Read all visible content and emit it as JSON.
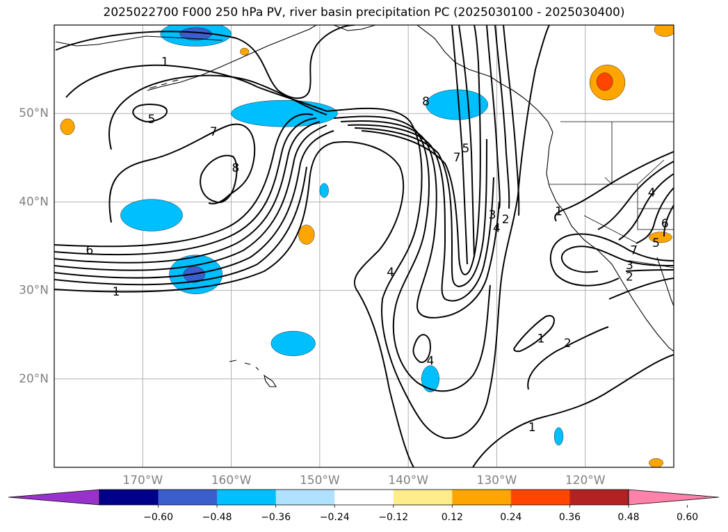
{
  "title": "2025022700 F000 250 hPa PV, river basin precipitation PC (2025030100 - 2025030400)",
  "map": {
    "lon_range": [
      -180,
      -110
    ],
    "lat_range": [
      10,
      60
    ],
    "lat_ticks": [
      {
        "value": 50,
        "label": "50°N"
      },
      {
        "value": 40,
        "label": "40°N"
      },
      {
        "value": 30,
        "label": "30°N"
      },
      {
        "value": 20,
        "label": "20°N"
      }
    ],
    "lon_ticks": [
      {
        "value": -170,
        "label": "170°W"
      },
      {
        "value": -160,
        "label": "160°W"
      },
      {
        "value": -150,
        "label": "150°W"
      },
      {
        "value": -140,
        "label": "140°W"
      },
      {
        "value": -130,
        "label": "130°W"
      },
      {
        "value": -120,
        "label": "120°W"
      }
    ],
    "grid": true,
    "contour_labels": [
      {
        "text": "1",
        "lon": -167.5,
        "lat": 55.8
      },
      {
        "text": "5",
        "lon": -169.0,
        "lat": 49.3
      },
      {
        "text": "7",
        "lon": -162.0,
        "lat": 47.9
      },
      {
        "text": "8",
        "lon": -159.5,
        "lat": 43.8
      },
      {
        "text": "8",
        "lon": -138.0,
        "lat": 51.3
      },
      {
        "text": "5",
        "lon": -133.5,
        "lat": 46.0
      },
      {
        "text": "7",
        "lon": -134.5,
        "lat": 45.0
      },
      {
        "text": "6",
        "lon": -176.0,
        "lat": 34.5
      },
      {
        "text": "1",
        "lon": -173.0,
        "lat": 29.8
      },
      {
        "text": "3",
        "lon": -130.5,
        "lat": 38.5
      },
      {
        "text": "2",
        "lon": -129.0,
        "lat": 38.0
      },
      {
        "text": "4",
        "lon": -130.0,
        "lat": 37.0
      },
      {
        "text": "1",
        "lon": -123.0,
        "lat": 38.9
      },
      {
        "text": "4",
        "lon": -142.0,
        "lat": 32.0
      },
      {
        "text": "4",
        "lon": -137.5,
        "lat": 22.0
      },
      {
        "text": "1",
        "lon": -125.0,
        "lat": 24.5
      },
      {
        "text": "2",
        "lon": -122.0,
        "lat": 24.0
      },
      {
        "text": "1",
        "lon": -126.0,
        "lat": 14.5
      },
      {
        "text": "4",
        "lon": -112.5,
        "lat": 41.0
      },
      {
        "text": "6",
        "lon": -111.0,
        "lat": 37.5
      },
      {
        "text": "5",
        "lon": -112.0,
        "lat": 35.3
      },
      {
        "text": "7",
        "lon": -114.5,
        "lat": 34.5
      },
      {
        "text": "3",
        "lon": -115.0,
        "lat": 32.8
      },
      {
        "text": "2",
        "lon": -115.0,
        "lat": 31.5
      }
    ],
    "precip_blobs": [
      {
        "lon": -164.0,
        "lat": 59.0,
        "rx": 4.0,
        "ry": 1.4,
        "color": "#00bfff"
      },
      {
        "lon": -164.0,
        "lat": 59.0,
        "rx": 1.8,
        "ry": 0.7,
        "color": "#3a5fcd"
      },
      {
        "lon": -154.0,
        "lat": 50.0,
        "rx": 6.0,
        "ry": 1.5,
        "color": "#00bfff"
      },
      {
        "lon": -134.5,
        "lat": 51.0,
        "rx": 3.5,
        "ry": 1.7,
        "color": "#00bfff"
      },
      {
        "lon": -169.0,
        "lat": 38.5,
        "rx": 3.5,
        "ry": 1.8,
        "color": "#00bfff"
      },
      {
        "lon": -164.0,
        "lat": 31.8,
        "rx": 3.0,
        "ry": 2.2,
        "color": "#00bfff"
      },
      {
        "lon": -164.2,
        "lat": 31.8,
        "rx": 1.2,
        "ry": 0.9,
        "color": "#3a5fcd"
      },
      {
        "lon": -153.0,
        "lat": 24.0,
        "rx": 2.5,
        "ry": 1.4,
        "color": "#00bfff"
      },
      {
        "lon": -137.5,
        "lat": 20.0,
        "rx": 1.0,
        "ry": 1.5,
        "color": "#00bfff"
      },
      {
        "lon": -149.5,
        "lat": 41.3,
        "rx": 0.5,
        "ry": 0.8,
        "color": "#00bfff"
      },
      {
        "lon": -123.0,
        "lat": 13.5,
        "rx": 0.5,
        "ry": 1.0,
        "color": "#00bfff"
      },
      {
        "lon": -151.5,
        "lat": 36.3,
        "rx": 0.9,
        "ry": 1.1,
        "color": "#ffa500"
      },
      {
        "lon": -178.5,
        "lat": 48.5,
        "rx": 0.8,
        "ry": 0.9,
        "color": "#ffa500"
      },
      {
        "lon": -117.5,
        "lat": 53.5,
        "rx": 2.0,
        "ry": 2.0,
        "color": "#ffa500"
      },
      {
        "lon": -117.8,
        "lat": 53.6,
        "rx": 0.9,
        "ry": 1.0,
        "color": "#ff4500"
      },
      {
        "lon": -111.5,
        "lat": 36.0,
        "rx": 1.3,
        "ry": 0.6,
        "color": "#ffa500"
      },
      {
        "lon": -111.0,
        "lat": 59.5,
        "rx": 1.2,
        "ry": 0.8,
        "color": "#ffa500"
      },
      {
        "lon": -112.0,
        "lat": 10.5,
        "rx": 0.8,
        "ry": 0.5,
        "color": "#ffa500"
      },
      {
        "lon": -158.5,
        "lat": 57.0,
        "rx": 0.5,
        "ry": 0.4,
        "color": "#ffa500"
      }
    ]
  },
  "colorbar": {
    "colors": [
      "#9932cc",
      "#00008b",
      "#3a5fcd",
      "#00bfff",
      "#b0e2ff",
      "#ffffff",
      "#ffec8b",
      "#ffa500",
      "#ff4500",
      "#b22222",
      "#ff82ab"
    ],
    "tick_labels": [
      "−0.60",
      "−0.48",
      "−0.36",
      "−0.24",
      "−0.12",
      "0.12",
      "0.24",
      "0.36",
      "0.48",
      "0.60"
    ]
  }
}
